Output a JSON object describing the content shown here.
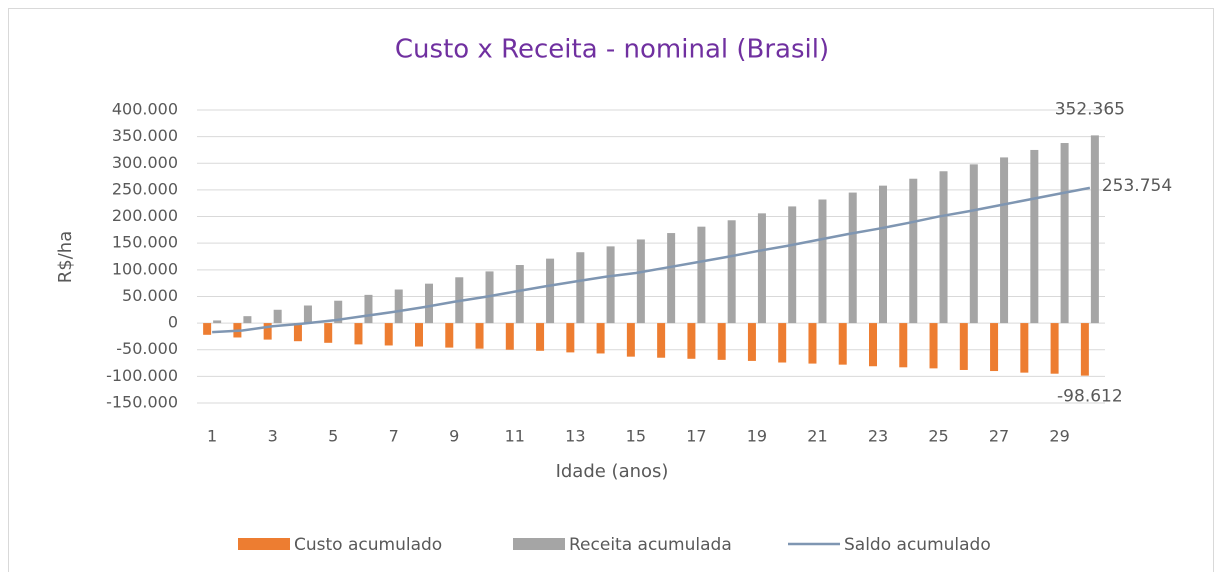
{
  "chart_data": {
    "type": "bar-line",
    "title": "Custo x Receita  - nominal (Brasil)",
    "x_label": "Idade (anos)",
    "y_label": "R$/ha",
    "categories": [
      1,
      null,
      3,
      null,
      5,
      null,
      7,
      null,
      9,
      null,
      11,
      null,
      13,
      null,
      15,
      null,
      17,
      null,
      19,
      null,
      21,
      null,
      23,
      null,
      25,
      null,
      27,
      null,
      29,
      null
    ],
    "series": [
      {
        "name": "Custo acumulado",
        "type": "bar",
        "color": "#ed7d31",
        "values": [
          -22000,
          -27000,
          -31000,
          -34000,
          -37000,
          -40000,
          -42000,
          -44000,
          -46000,
          -48000,
          -50000,
          -52000,
          -55000,
          -57000,
          -63000,
          -65000,
          -67000,
          -69000,
          -71000,
          -74000,
          -76000,
          -78000,
          -81000,
          -83000,
          -85000,
          -88000,
          -90000,
          -93000,
          -95000,
          -98612
        ],
        "value_labels": [
          null,
          null,
          null,
          null,
          null,
          null,
          null,
          null,
          null,
          null,
          null,
          null,
          null,
          null,
          null,
          null,
          null,
          null,
          null,
          null,
          null,
          null,
          null,
          null,
          null,
          null,
          null,
          null,
          null,
          "-98.612"
        ]
      },
      {
        "name": "Receita acumulada",
        "type": "bar",
        "color": "#a5a5a5",
        "values": [
          5000,
          13000,
          25000,
          33000,
          42000,
          53000,
          63000,
          74000,
          86000,
          97000,
          109000,
          121000,
          133000,
          144000,
          157000,
          169000,
          181000,
          193000,
          206000,
          219000,
          232000,
          245000,
          258000,
          271000,
          285000,
          298000,
          311000,
          325000,
          338000,
          352365
        ],
        "value_labels": [
          null,
          null,
          null,
          null,
          null,
          null,
          null,
          null,
          null,
          null,
          null,
          null,
          null,
          null,
          null,
          null,
          null,
          null,
          null,
          null,
          null,
          null,
          null,
          null,
          null,
          null,
          null,
          null,
          null,
          "352.365"
        ]
      },
      {
        "name": "Saldo acumulado",
        "type": "line",
        "color": "#7f96b2",
        "values": [
          -17000,
          -14000,
          -6000,
          -1000,
          5000,
          13000,
          21000,
          30000,
          40000,
          49000,
          59000,
          69000,
          78000,
          87000,
          94000,
          104000,
          114000,
          124000,
          135000,
          145000,
          156000,
          167000,
          177000,
          188000,
          200000,
          210000,
          221000,
          232000,
          243000,
          253754
        ],
        "value_labels": [
          null,
          null,
          null,
          null,
          null,
          null,
          null,
          null,
          null,
          null,
          null,
          null,
          null,
          null,
          null,
          null,
          null,
          null,
          null,
          null,
          null,
          null,
          null,
          null,
          null,
          null,
          null,
          null,
          null,
          "253.754"
        ]
      }
    ],
    "ylim": [
      -150000,
      400000
    ],
    "yticks": [
      {
        "value": -150000,
        "label": "-150.000"
      },
      {
        "value": -100000,
        "label": "-100.000"
      },
      {
        "value": -50000,
        "label": "-50.000"
      },
      0,
      {
        "value": 50000,
        "label": "50.000"
      },
      {
        "value": 100000,
        "label": "100.000"
      },
      {
        "value": 150000,
        "label": "150.000"
      },
      {
        "value": 200000,
        "label": "200.000"
      },
      {
        "value": 250000,
        "label": "250.000"
      },
      {
        "value": 300000,
        "label": "300.000"
      },
      {
        "value": 350000,
        "label": "350.000"
      },
      {
        "value": 400000,
        "label": "400.000"
      }
    ],
    "grid": true,
    "legend": "bottom"
  }
}
